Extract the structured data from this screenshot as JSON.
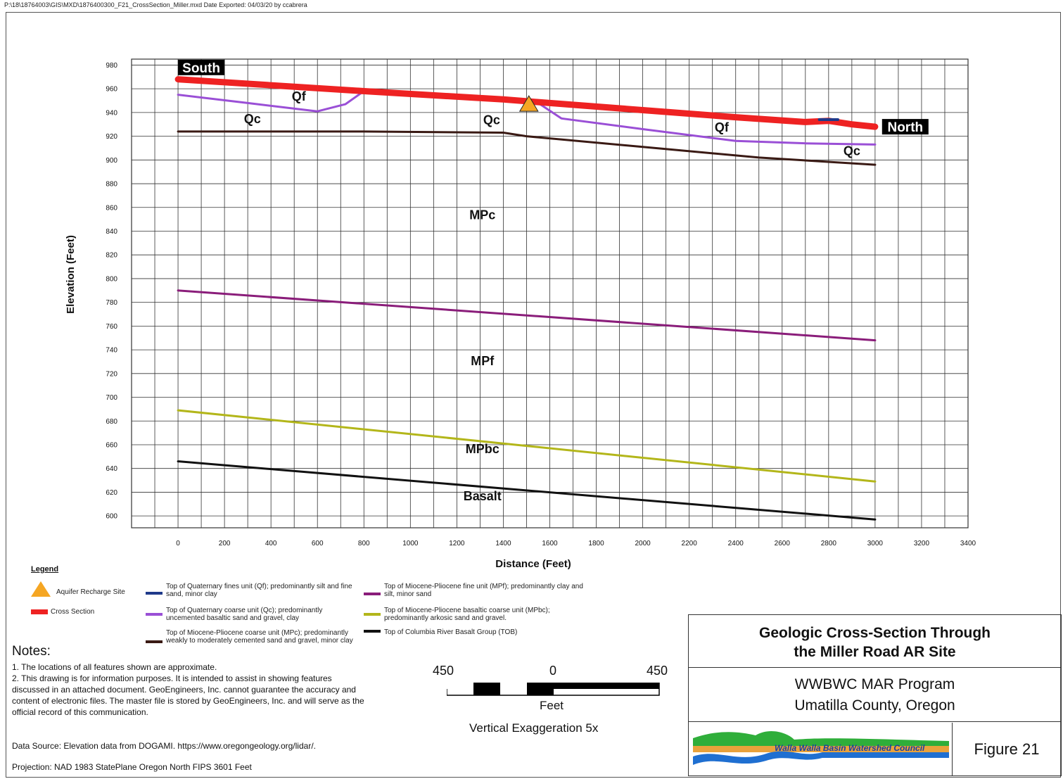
{
  "header": {
    "file_path": "P:\\18\\18764003\\GIS\\MXD\\1876400300_F21_CrossSection_Miller.mxd  Date Exported: 04/03/20   by ccabrera"
  },
  "chart_data": {
    "type": "line",
    "title": "",
    "xlabel": "Distance (Feet)",
    "ylabel": "Elevation (Feet)",
    "xlim": [
      -200,
      3400
    ],
    "ylim": [
      590,
      985
    ],
    "x_ticks": [
      0,
      200,
      400,
      600,
      800,
      1000,
      1200,
      1400,
      1600,
      1800,
      2000,
      2200,
      2400,
      2600,
      2800,
      3000,
      3200,
      3400
    ],
    "x_tick_labels": [
      "0",
      "200",
      "400",
      "600",
      "800",
      "1000",
      "1200",
      "1400",
      "1600",
      "1800",
      "2000",
      "2200",
      "2400",
      "2600",
      "2800",
      "3000",
      "3200",
      "3400"
    ],
    "y_ticks": [
      600,
      620,
      640,
      660,
      680,
      700,
      720,
      740,
      760,
      780,
      800,
      820,
      840,
      860,
      880,
      900,
      920,
      940,
      960,
      980
    ],
    "y_tick_labels": [
      "600",
      "620",
      "640",
      "660",
      "680",
      "700",
      "720",
      "740",
      "760",
      "780",
      "800",
      "820",
      "840",
      "860",
      "880",
      "900",
      "920",
      "940",
      "960",
      "980"
    ],
    "grid": true,
    "series": [
      {
        "key": "xs",
        "color": "#ee2222",
        "x": [
          0,
          800,
          1400,
          1600,
          2000,
          2400,
          2700,
          2800,
          2900,
          3000
        ],
        "y": [
          968,
          958,
          951,
          948,
          942,
          936,
          932,
          933,
          930,
          928
        ]
      },
      {
        "key": "qf",
        "color": "#1f3a8a",
        "x": [
          2760,
          2840
        ],
        "y": [
          934,
          934
        ]
      },
      {
        "key": "qc",
        "color": "#9a4fd6",
        "x": [
          0,
          300,
          600,
          720,
          800,
          1400,
          1550,
          1650,
          2000,
          2400,
          2700,
          3000
        ],
        "y": [
          955,
          948,
          941,
          947,
          958,
          951,
          948,
          935,
          926,
          916,
          914,
          913
        ]
      },
      {
        "key": "mp",
        "color": "#3a1a14",
        "x": [
          0,
          800,
          1400,
          1500,
          2000,
          2500,
          3000
        ],
        "y": [
          924,
          924,
          923,
          920,
          911,
          902,
          896
        ]
      },
      {
        "key": "mpf",
        "color": "#8a1d7a",
        "x": [
          0,
          3000
        ],
        "y": [
          790,
          748
        ]
      },
      {
        "key": "mpbc",
        "color": "#b3b61a",
        "x": [
          0,
          3000
        ],
        "y": [
          689,
          629
        ]
      },
      {
        "key": "tob",
        "color": "#111111",
        "x": [
          0,
          3000
        ],
        "y": [
          646,
          597
        ]
      }
    ],
    "unit_labels": [
      {
        "text": "Qf",
        "x": 520,
        "y": 950
      },
      {
        "text": "Qc",
        "x": 320,
        "y": 931
      },
      {
        "text": "Qc",
        "x": 1350,
        "y": 930
      },
      {
        "text": "Qf",
        "x": 2340,
        "y": 924
      },
      {
        "text": "Qc",
        "x": 2900,
        "y": 904
      },
      {
        "text": "MPc",
        "x": 1310,
        "y": 850
      },
      {
        "text": "MPf",
        "x": 1310,
        "y": 727
      },
      {
        "text": "MPbc",
        "x": 1310,
        "y": 653
      },
      {
        "text": "Basalt",
        "x": 1310,
        "y": 613
      }
    ],
    "direction_labels": [
      {
        "text": "South",
        "x": 0,
        "y": 978
      },
      {
        "text": "North",
        "x": 3030,
        "y": 928
      }
    ],
    "marker": {
      "label": "Aquifer Recharge Site",
      "x": 1510,
      "y": 947,
      "color": "#f5a623"
    }
  },
  "legend": {
    "title": "Legend",
    "items": [
      {
        "label": "Aquifer Recharge Site",
        "swatch": "triangle",
        "color": "#f5a623"
      },
      {
        "label": "Cross Section",
        "swatch": "line",
        "color": "#ee2222"
      },
      {
        "label": "Top of Quaternary fines unit (Qf); predominantly silt and fine sand, minor clay",
        "swatch": "line",
        "color": "#1f3a8a"
      },
      {
        "label": "Top of Quaternary coarse unit (Qc); predominantly uncemented basaltic sand and gravel, clay",
        "swatch": "line",
        "color": "#9a4fd6"
      },
      {
        "label": "Top of Miocene-Pliocene coarse unit (MPc); predominantly weakly to moderately cemented sand and gravel, minor clay",
        "swatch": "line",
        "color": "#3a1a14"
      },
      {
        "label": "Top of Miocene-Pliocene fine unit (MPf); predominantly clay and silt, minor sand",
        "swatch": "line",
        "color": "#8a1d7a"
      },
      {
        "label": "Top of Miocene-Pliocene basaltic coarse unit (MPbc); predominantly arkosic sand and gravel.",
        "swatch": "line",
        "color": "#b3b61a"
      },
      {
        "label": "Top of Columbia River Basalt Group (TOB)",
        "swatch": "line",
        "color": "#111111"
      }
    ]
  },
  "notes": {
    "title": "Notes:",
    "lines": [
      "1. The locations of all features shown are approximate.",
      "2. This drawing is for information purposes. It is intended to assist in showing features discussed in an attached document. GeoEngineers, Inc. cannot guarantee the accuracy and content of electronic files. The master file is stored by GeoEngineers, Inc. and will serve as the official record of this communication."
    ],
    "data_source": "Data Source: Elevation data from DOGAMI. https://www.oregongeology.org/lidar/.",
    "projection": "Projection: NAD 1983 StatePlane Oregon North FIPS 3601 Feet"
  },
  "scale_bar": {
    "left_label": "450",
    "center_label": "0",
    "right_label": "450",
    "unit": "Feet",
    "vertical_exaggeration": "Vertical Exaggeration 5x"
  },
  "title_block": {
    "title_line1": "Geologic Cross-Section Through",
    "title_line2": "the Miller Road AR Site",
    "program_line1": "WWBWC MAR Program",
    "program_line2": "Umatilla County, Oregon",
    "logo_text": "Walla Walla Basin Watershed Council",
    "figure": "Figure 21"
  }
}
